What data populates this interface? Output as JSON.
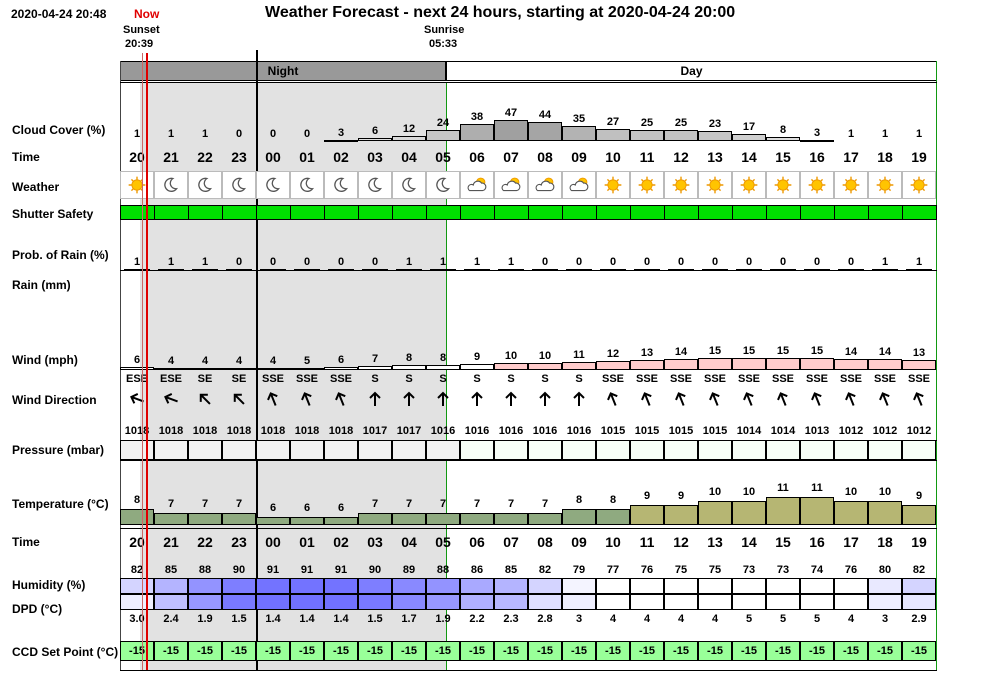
{
  "header": {
    "datetime": "2020-04-24 20:48",
    "now_label": "Now",
    "title": "Weather Forecast - next 24 hours, starting at 2020-04-24 20:00",
    "sunset_label": "Sunset",
    "sunset_time": "20:39",
    "sunrise_label": "Sunrise",
    "sunrise_time": "05:33",
    "night_label": "Night",
    "day_label": "Day"
  },
  "row_labels": {
    "cloud": "Cloud Cover (%)",
    "time": "Time",
    "weather": "Weather",
    "shutter": "Shutter Safety",
    "rain_prob": "Prob. of Rain (%)",
    "rain": "Rain (mm)",
    "wind": "Wind (mph)",
    "wind_dir": "Wind Direction",
    "pressure": "Pressure (mbar)",
    "temperature": "Temperature (°C)",
    "time2": "Time",
    "humidity": "Humidity (%)",
    "dpd": "DPD (°C)",
    "ccd": "CCD Set Point (°C)"
  },
  "hours": [
    "20",
    "21",
    "22",
    "23",
    "00",
    "01",
    "02",
    "03",
    "04",
    "05",
    "06",
    "07",
    "08",
    "09",
    "10",
    "11",
    "12",
    "13",
    "14",
    "15",
    "16",
    "17",
    "18",
    "19"
  ],
  "cloud_cover": [
    1,
    1,
    1,
    0,
    0,
    0,
    3,
    6,
    12,
    24,
    38,
    47,
    44,
    35,
    27,
    25,
    25,
    23,
    17,
    8,
    3,
    1,
    1,
    1
  ],
  "weather_icons": [
    "sun-icon",
    "moon-icon",
    "moon-icon",
    "moon-icon",
    "moon-icon",
    "moon-icon",
    "moon-icon",
    "moon-icon",
    "moon-icon",
    "moon-icon",
    "partly-cloudy-icon",
    "partly-cloudy-icon",
    "partly-cloudy-icon",
    "partly-cloudy-icon",
    "sun-icon",
    "sun-icon",
    "sun-icon",
    "sun-icon",
    "sun-icon",
    "sun-icon",
    "sun-icon",
    "sun-icon",
    "sun-icon",
    "sun-icon"
  ],
  "rain_prob": [
    1,
    1,
    1,
    0,
    0,
    0,
    0,
    0,
    1,
    1,
    1,
    1,
    0,
    0,
    0,
    0,
    0,
    0,
    0,
    0,
    0,
    0,
    1,
    1
  ],
  "wind_speed": [
    6,
    4,
    4,
    4,
    4,
    5,
    6,
    7,
    8,
    8,
    9,
    10,
    10,
    11,
    12,
    13,
    14,
    15,
    15,
    15,
    15,
    14,
    14,
    13
  ],
  "wind_dir": [
    "ESE",
    "ESE",
    "SE",
    "SE",
    "SSE",
    "SSE",
    "SSE",
    "S",
    "S",
    "S",
    "S",
    "S",
    "S",
    "S",
    "SSE",
    "SSE",
    "SSE",
    "SSE",
    "SSE",
    "SSE",
    "SSE",
    "SSE",
    "SSE",
    "SSE"
  ],
  "pressure": [
    1018,
    1018,
    1018,
    1018,
    1018,
    1018,
    1018,
    1017,
    1017,
    1016,
    1016,
    1016,
    1016,
    1016,
    1015,
    1015,
    1015,
    1015,
    1014,
    1014,
    1013,
    1012,
    1012,
    1012
  ],
  "temperature": [
    8,
    7,
    7,
    7,
    6,
    6,
    6,
    7,
    7,
    7,
    7,
    7,
    7,
    8,
    8,
    9,
    9,
    10,
    10,
    11,
    11,
    10,
    10,
    9
  ],
  "humidity": [
    82,
    85,
    88,
    90,
    91,
    91,
    91,
    90,
    89,
    88,
    86,
    85,
    82,
    79,
    77,
    76,
    75,
    75,
    73,
    73,
    74,
    76,
    80,
    82
  ],
  "dpd": [
    "3.0",
    "2.4",
    "1.9",
    "1.5",
    "1.4",
    "1.4",
    "1.4",
    "1.5",
    "1.7",
    "1.9",
    "2.2",
    "2.3",
    "2.8",
    "3",
    "4",
    "4",
    "4",
    "4",
    "5",
    "5",
    "5",
    "4",
    "3",
    "2.9"
  ],
  "ccd_setpoint": [
    "-15",
    "-15",
    "-15",
    "-15",
    "-15",
    "-15",
    "-15",
    "-15",
    "-15",
    "-15",
    "-15",
    "-15",
    "-15",
    "-15",
    "-15",
    "-15",
    "-15",
    "-15",
    "-15",
    "-15",
    "-15",
    "-15",
    "-15",
    "-15"
  ],
  "colors": {
    "now_line": "#e00000",
    "night_shade": "#e2e2e2",
    "night_band": "#999999",
    "shutter_safe": "#00e000",
    "ccd": "#99ff99",
    "wind_high": "#ffcccc",
    "temp_low": "#8faa80",
    "temp_high": "#b6b673",
    "humidity_high": "#7777ff",
    "dpd_low": "#8888ff",
    "day_border": "#119911",
    "night_border": "#444444"
  }
}
